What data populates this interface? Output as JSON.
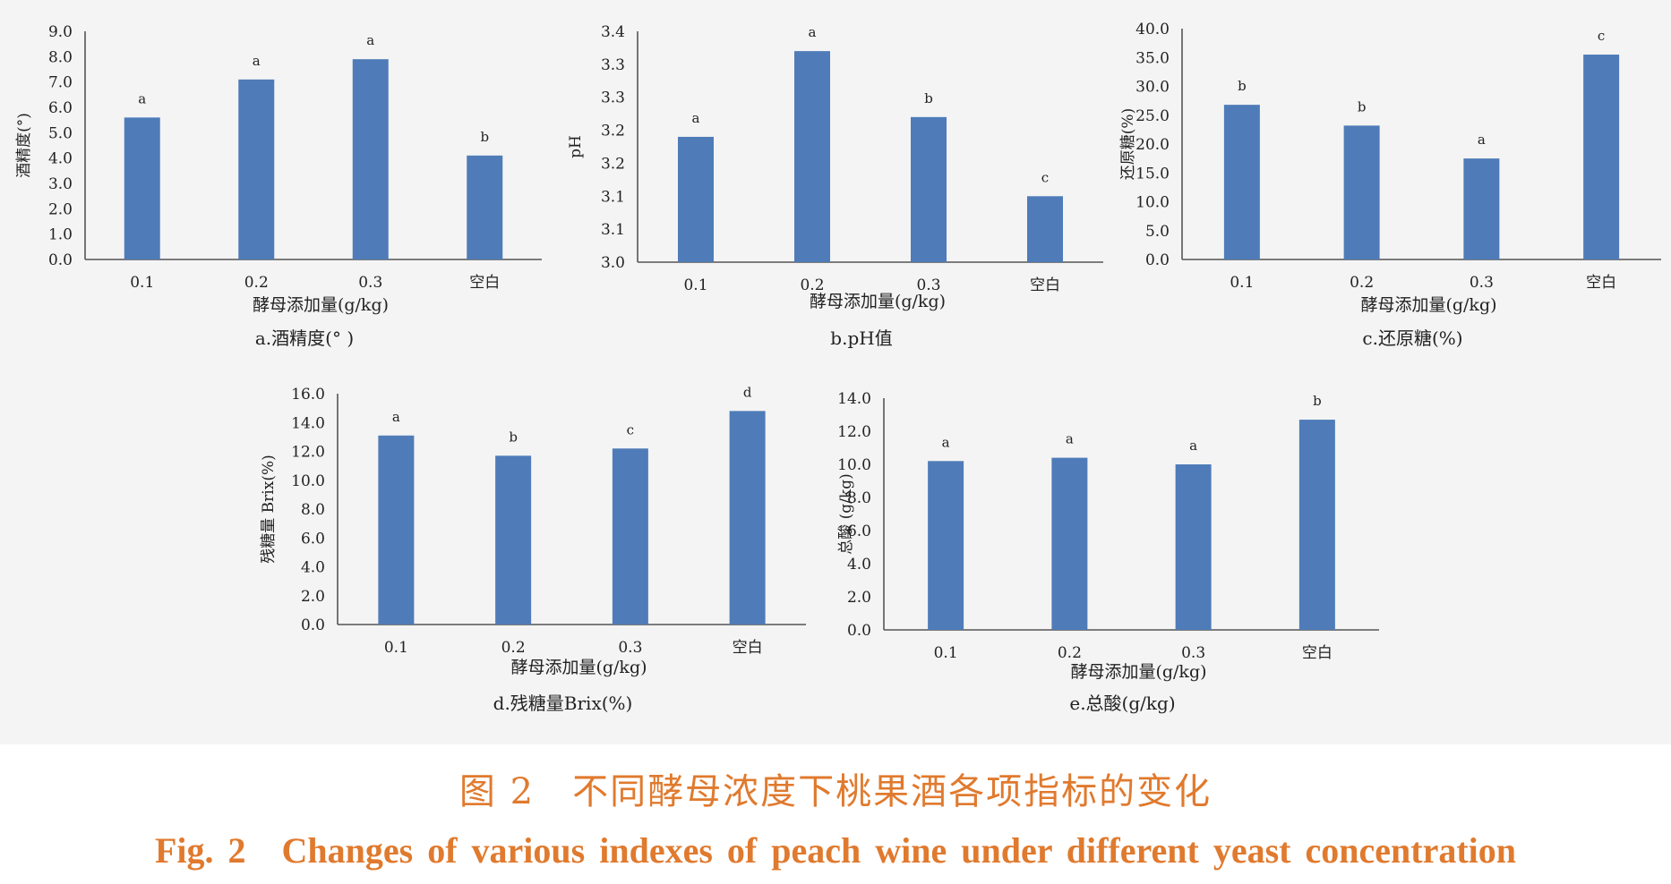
{
  "colors": {
    "bar": "#4f7cb8",
    "caption": "#e07a2e",
    "background": "#f4f4f4"
  },
  "figure": {
    "caption_cn": "图 2　不同酵母浓度下桃果酒各项指标的变化",
    "caption_en": "Fig. 2　Changes of various indexes of peach wine under different yeast concentration"
  },
  "chart_data": [
    {
      "type": "bar",
      "caption": "a.酒精度(°  )",
      "categories": [
        "0.1",
        "0.2",
        "0.3",
        "空白"
      ],
      "values": [
        5.6,
        7.1,
        7.9,
        4.1
      ],
      "letters": [
        "a",
        "a",
        "a",
        "b"
      ],
      "ylabel": "酒精度(°)",
      "xlabel": "酵母添加量(g/kg)",
      "ylim": [
        0,
        9
      ],
      "yticks": [
        "0.0",
        "1.0",
        "2.0",
        "3.0",
        "4.0",
        "5.0",
        "6.0",
        "7.0",
        "8.0",
        "9.0"
      ]
    },
    {
      "type": "bar",
      "caption": "b.pH值",
      "categories": [
        "0.1",
        "0.2",
        "0.3",
        "空白"
      ],
      "values": [
        3.19,
        3.32,
        3.22,
        3.1
      ],
      "letters": [
        "a",
        "a",
        "b",
        "c"
      ],
      "ylabel": "pH",
      "xlabel": "酵母添加量(g/kg)",
      "ylim": [
        3.0,
        3.35
      ],
      "yticks": [
        "3.0",
        "3.1",
        "3.1",
        "3.2",
        "3.2",
        "3.3",
        "3.3",
        "3.4"
      ]
    },
    {
      "type": "bar",
      "caption": "c.还原糖(%)",
      "categories": [
        "0.1",
        "0.2",
        "0.3",
        "空白"
      ],
      "values": [
        26.8,
        23.2,
        17.5,
        35.5
      ],
      "letters": [
        "b",
        "b",
        "a",
        "c"
      ],
      "ylabel": "还原糖(%)",
      "xlabel": "酵母添加量(g/kg)",
      "ylim": [
        0,
        40
      ],
      "yticks": [
        "0.0",
        "5.0",
        "10.0",
        "15.0",
        "20.0",
        "25.0",
        "30.0",
        "35.0",
        "40.0"
      ]
    },
    {
      "type": "bar",
      "caption": "d.残糖量Brix(%)",
      "categories": [
        "0.1",
        "0.2",
        "0.3",
        "空白"
      ],
      "values": [
        13.1,
        11.7,
        12.2,
        14.8
      ],
      "letters": [
        "a",
        "b",
        "c",
        "d"
      ],
      "ylabel": "残糖量 Brix(%)",
      "xlabel": "酵母添加量(g/kg)",
      "ylim": [
        0,
        16
      ],
      "yticks": [
        "0.0",
        "2.0",
        "4.0",
        "6.0",
        "8.0",
        "10.0",
        "12.0",
        "14.0",
        "16.0"
      ]
    },
    {
      "type": "bar",
      "caption": "e.总酸(g/kg)",
      "categories": [
        "0.1",
        "0.2",
        "0.3",
        "空白"
      ],
      "values": [
        10.2,
        10.4,
        10.0,
        12.7
      ],
      "letters": [
        "a",
        "a",
        "a",
        "b"
      ],
      "ylabel": "总酸 (g/kg)",
      "xlabel": "酵母添加量(g/kg)",
      "ylim": [
        0,
        14
      ],
      "yticks": [
        "0.0",
        "2.0",
        "4.0",
        "6.0",
        "8.0",
        "10.0",
        "12.0",
        "14.0"
      ]
    }
  ]
}
